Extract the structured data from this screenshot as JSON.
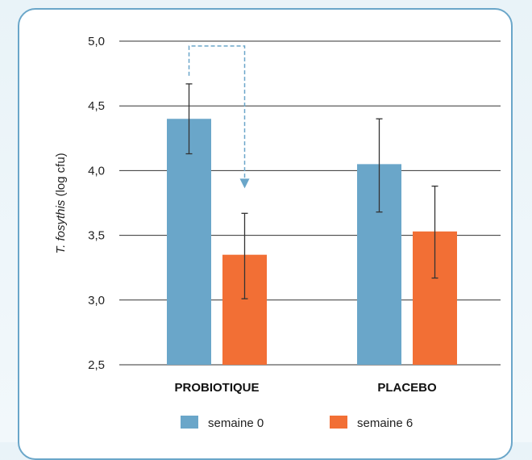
{
  "chart_data": {
    "type": "bar",
    "ylabel_italic": "T. fosythis",
    "ylabel_rest": " (log cfu)",
    "ylim": [
      2.5,
      5.0
    ],
    "yticks": [
      "2,5",
      "3,0",
      "3,5",
      "4,0",
      "4,5",
      "5,0"
    ],
    "ytick_values": [
      2.5,
      3.0,
      3.5,
      4.0,
      4.5,
      5.0
    ],
    "grid": true,
    "categories": [
      "PROBIOTIQUE",
      "PLACEBO"
    ],
    "series": [
      {
        "name": "semaine 0",
        "color": "#6aa6c9",
        "values": [
          4.4,
          4.05
        ],
        "error_low": [
          4.13,
          3.68
        ],
        "error_high": [
          4.67,
          4.4
        ]
      },
      {
        "name": "semaine 6",
        "color": "#f26f35",
        "values": [
          3.35,
          3.53
        ],
        "error_low": [
          3.01,
          3.17
        ],
        "error_high": [
          3.67,
          3.88
        ]
      }
    ],
    "annotation": {
      "type": "dashed-arrow",
      "from_series": 0,
      "to_series": 1,
      "category": 0,
      "top": 5.0,
      "color": "#6aa6c9"
    },
    "legend_position": "bottom"
  }
}
